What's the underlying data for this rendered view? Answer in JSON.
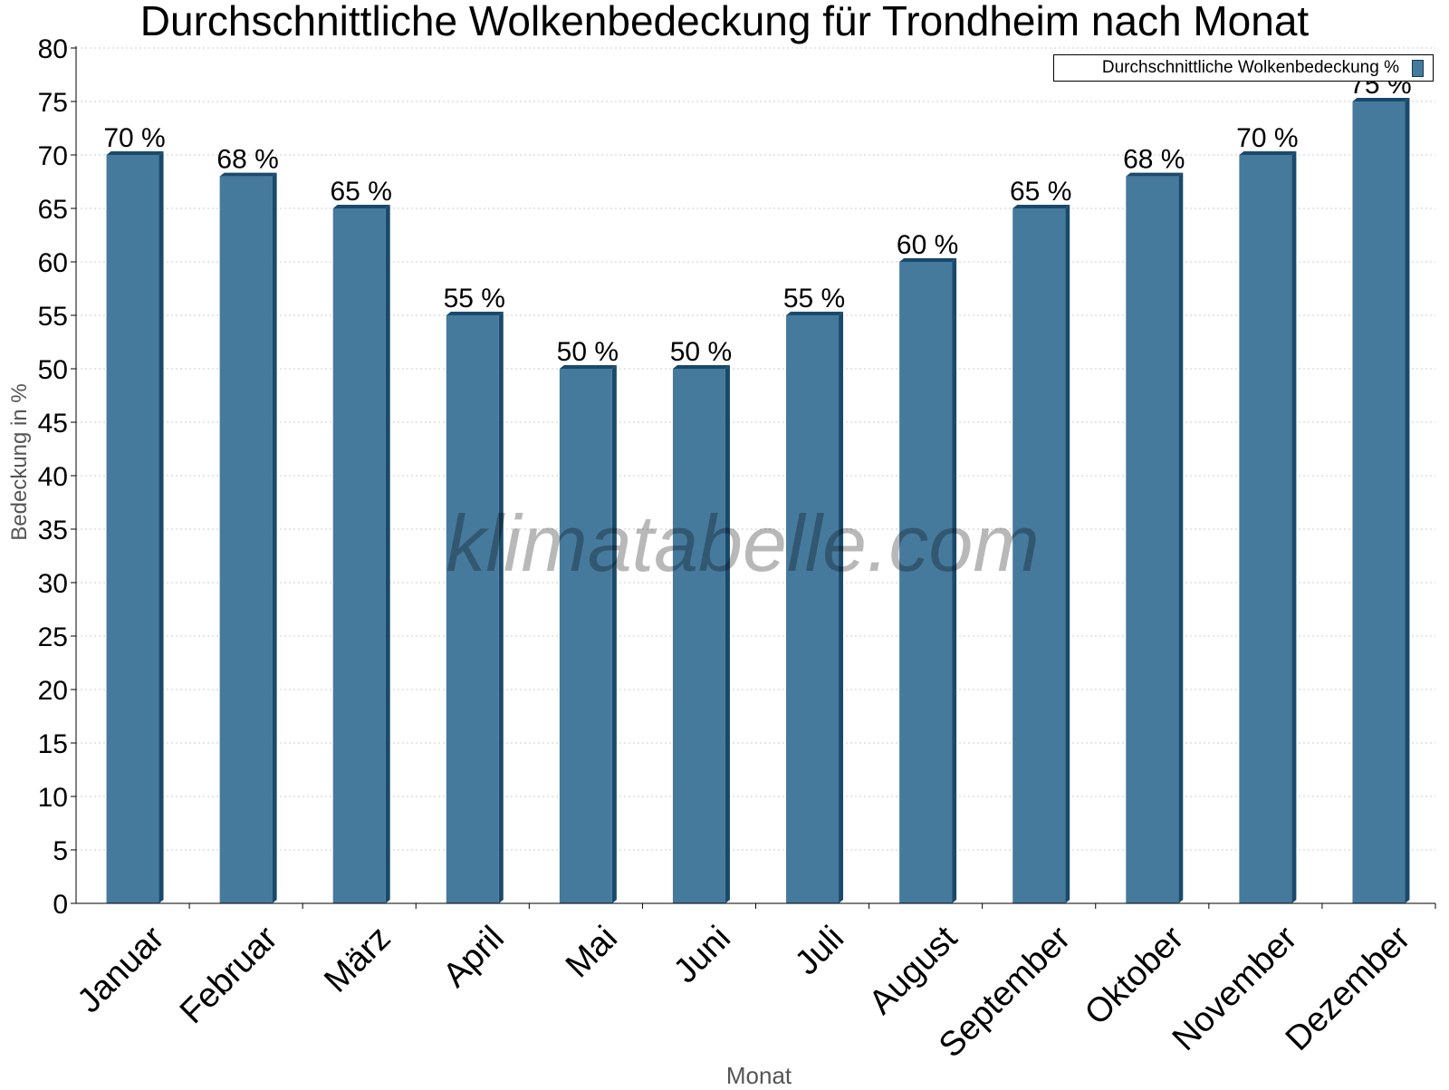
{
  "chart_data": {
    "type": "bar",
    "title": "Durchschnittliche Wolkenbedeckung für Trondheim nach Monat",
    "xlabel": "Monat",
    "ylabel": "Bedeckung in %",
    "categories": [
      "Januar",
      "Februar",
      "März",
      "April",
      "Mai",
      "Juni",
      "Juli",
      "August",
      "September",
      "Oktober",
      "November",
      "Dezember"
    ],
    "series": [
      {
        "name": "Durchschnittliche Wolkenbedeckung %",
        "values": [
          70,
          68,
          65,
          55,
          50,
          50,
          55,
          60,
          65,
          68,
          70,
          75
        ],
        "value_labels": [
          "70 %",
          "68 %",
          "65 %",
          "55 %",
          "50 %",
          "50 %",
          "55 %",
          "60 %",
          "65 %",
          "68 %",
          "70 %",
          "75 %"
        ]
      }
    ],
    "ylim": [
      0,
      80
    ],
    "yticks": [
      0,
      5,
      10,
      15,
      20,
      25,
      30,
      35,
      40,
      45,
      50,
      55,
      60,
      65,
      70,
      75,
      80
    ],
    "grid": true,
    "legend_position": "top-right",
    "colors": {
      "bar": "#467a9d",
      "bar_edge": "#1a4a6b",
      "grid": "#cccccc"
    }
  },
  "watermark": "klimatabelle.com"
}
